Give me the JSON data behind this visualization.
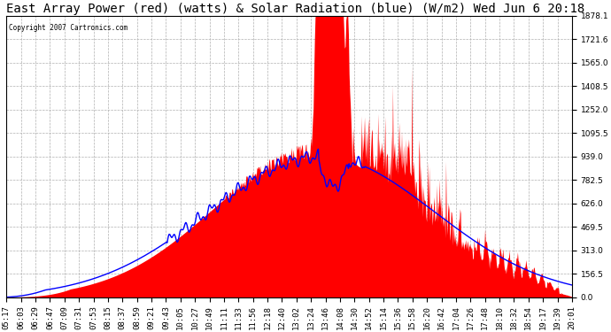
{
  "title": "East Array Power (red) (watts) & Solar Radiation (blue) (W/m2) Wed Jun 6 20:18",
  "copyright": "Copyright 2007 Cartronics.com",
  "bg_color": "#ffffff",
  "plot_bg_color": "#ffffff",
  "grid_color": "#b0b0b0",
  "ymin": 0.0,
  "ymax": 1878.1,
  "yticks": [
    0.0,
    156.5,
    313.0,
    469.5,
    626.0,
    782.5,
    939.0,
    1095.5,
    1252.0,
    1408.5,
    1565.0,
    1721.6,
    1878.1
  ],
  "x_labels": [
    "05:17",
    "06:03",
    "06:29",
    "06:47",
    "07:09",
    "07:31",
    "07:53",
    "08:15",
    "08:37",
    "08:59",
    "09:21",
    "09:43",
    "10:05",
    "10:27",
    "10:49",
    "11:11",
    "11:33",
    "11:56",
    "12:18",
    "12:40",
    "13:02",
    "13:24",
    "13:46",
    "14:08",
    "14:30",
    "14:52",
    "15:14",
    "15:36",
    "15:58",
    "16:20",
    "16:42",
    "17:04",
    "17:26",
    "17:48",
    "18:10",
    "18:32",
    "18:54",
    "19:17",
    "19:39",
    "20:01"
  ],
  "red_fill_color": "#ff0000",
  "blue_line_color": "#0000ff",
  "title_fontsize": 10,
  "tick_fontsize": 6.5
}
